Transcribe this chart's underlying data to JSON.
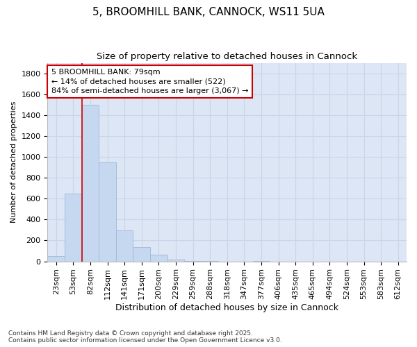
{
  "title1": "5, BROOMHILL BANK, CANNOCK, WS11 5UA",
  "title2": "Size of property relative to detached houses in Cannock",
  "xlabel": "Distribution of detached houses by size in Cannock",
  "ylabel": "Number of detached properties",
  "categories": [
    "23sqm",
    "53sqm",
    "82sqm",
    "112sqm",
    "141sqm",
    "171sqm",
    "200sqm",
    "229sqm",
    "259sqm",
    "288sqm",
    "318sqm",
    "347sqm",
    "377sqm",
    "406sqm",
    "435sqm",
    "465sqm",
    "494sqm",
    "524sqm",
    "553sqm",
    "583sqm",
    "612sqm"
  ],
  "values": [
    50,
    650,
    1500,
    950,
    295,
    135,
    65,
    20,
    5,
    2,
    0,
    0,
    5,
    0,
    0,
    0,
    0,
    0,
    0,
    0,
    0
  ],
  "bar_color": "#c5d8ef",
  "bar_edge_color": "#9db8d8",
  "vline_color": "#cc0000",
  "vline_x": 2,
  "annotation_text": "5 BROOMHILL BANK: 79sqm\n← 14% of detached houses are smaller (522)\n84% of semi-detached houses are larger (3,067) →",
  "annotation_box_color": "#ffffff",
  "annotation_box_edge": "#cc0000",
  "ylim": [
    0,
    1900
  ],
  "yticks": [
    0,
    200,
    400,
    600,
    800,
    1000,
    1200,
    1400,
    1600,
    1800
  ],
  "grid_color": "#c8d4e8",
  "bg_color": "#dce6f5",
  "footer1": "Contains HM Land Registry data © Crown copyright and database right 2025.",
  "footer2": "Contains public sector information licensed under the Open Government Licence v3.0.",
  "title1_fontsize": 11,
  "title2_fontsize": 9.5,
  "xlabel_fontsize": 9,
  "ylabel_fontsize": 8,
  "tick_fontsize": 8,
  "annot_fontsize": 8,
  "footer_fontsize": 6.5
}
